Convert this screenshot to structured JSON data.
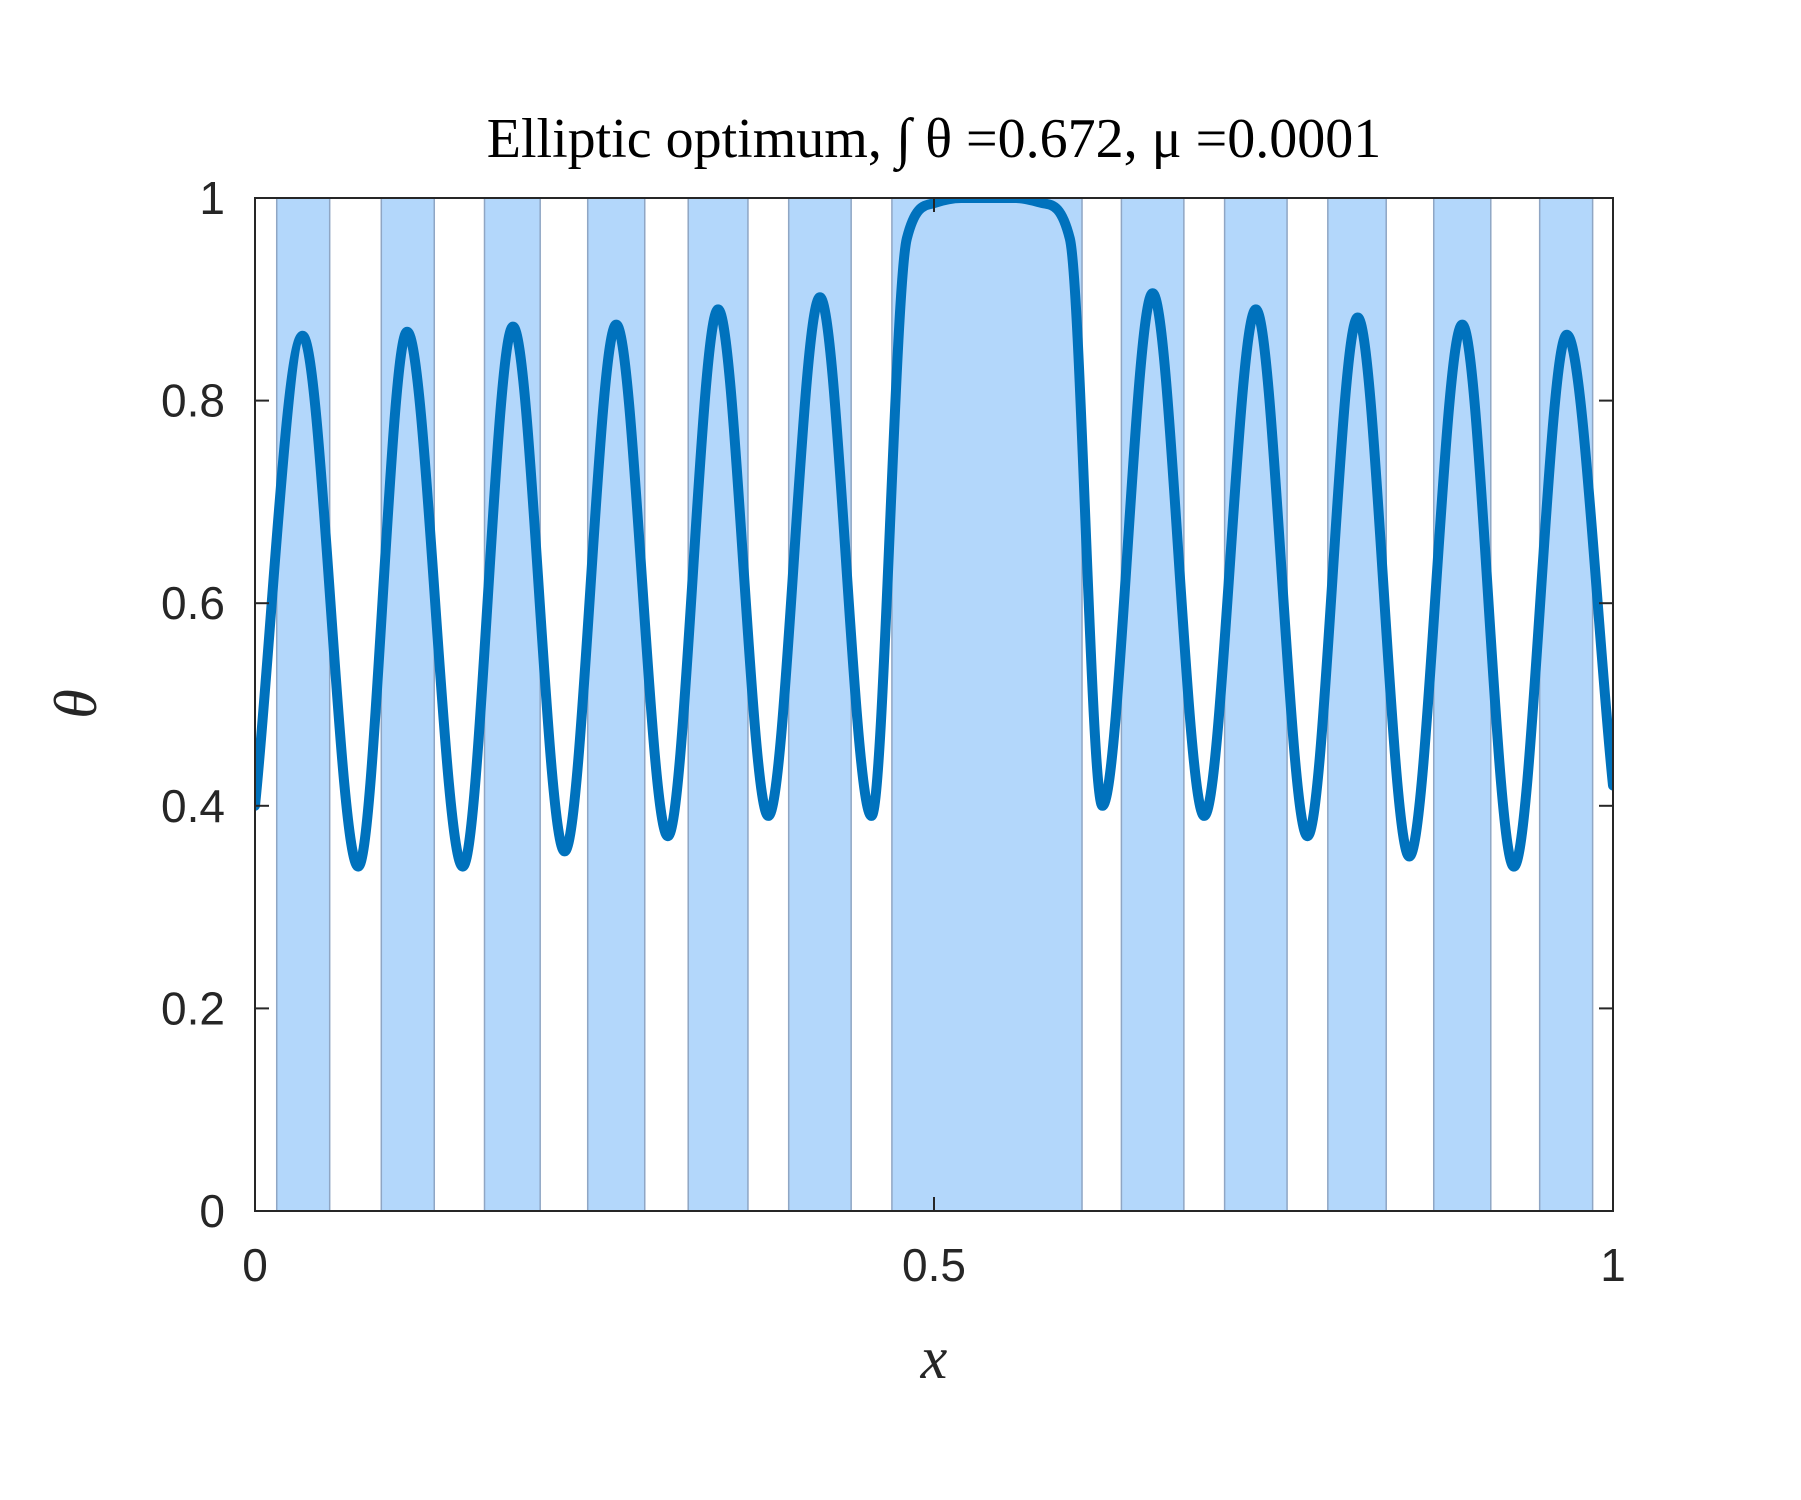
{
  "chart_data": {
    "type": "line",
    "title": "Elliptic optimum, ∫ θ =0.672, μ =0.0001",
    "xlabel": "x",
    "ylabel": "θ",
    "xlim": [
      0,
      1
    ],
    "ylim": [
      0,
      1
    ],
    "xticks": [
      0,
      0.5,
      1
    ],
    "xtick_labels": [
      "0",
      "0.5",
      "1"
    ],
    "yticks": [
      0,
      0.2,
      0.4,
      0.6,
      0.8,
      1
    ],
    "ytick_labels": [
      "0",
      "0.2",
      "0.4",
      "0.6",
      "0.8",
      "1"
    ],
    "grid": false,
    "legend": "none",
    "colors": {
      "line": "#0072BD",
      "band_fill": "#B3D7FB",
      "band_edge": "#8FA6C4",
      "axis": "#262626"
    },
    "shaded_bands": [
      [
        0.016,
        0.055
      ],
      [
        0.093,
        0.132
      ],
      [
        0.169,
        0.21
      ],
      [
        0.245,
        0.287
      ],
      [
        0.319,
        0.363
      ],
      [
        0.393,
        0.439
      ],
      [
        0.469,
        0.609
      ],
      [
        0.638,
        0.684
      ],
      [
        0.714,
        0.76
      ],
      [
        0.79,
        0.833
      ],
      [
        0.868,
        0.91
      ],
      [
        0.946,
        0.985
      ]
    ],
    "series": [
      {
        "points": [
          [
            0.0,
            0.4
          ],
          [
            0.035,
            0.864
          ],
          [
            0.076,
            0.34
          ],
          [
            0.112,
            0.868
          ],
          [
            0.153,
            0.34
          ],
          [
            0.19,
            0.873
          ],
          [
            0.228,
            0.355
          ],
          [
            0.266,
            0.875
          ],
          [
            0.304,
            0.37
          ],
          [
            0.341,
            0.89
          ],
          [
            0.378,
            0.39
          ],
          [
            0.416,
            0.902
          ],
          [
            0.454,
            0.39
          ],
          [
            0.48,
            0.96
          ],
          [
            0.5,
            0.995
          ],
          [
            0.52,
            1.0
          ],
          [
            0.56,
            1.0
          ],
          [
            0.58,
            0.995
          ],
          [
            0.6,
            0.96
          ],
          [
            0.624,
            0.4
          ],
          [
            0.661,
            0.906
          ],
          [
            0.699,
            0.39
          ],
          [
            0.737,
            0.89
          ],
          [
            0.775,
            0.37
          ],
          [
            0.812,
            0.882
          ],
          [
            0.85,
            0.35
          ],
          [
            0.889,
            0.875
          ],
          [
            0.927,
            0.34
          ],
          [
            0.966,
            0.865
          ],
          [
            1.0,
            0.42
          ]
        ]
      }
    ]
  }
}
